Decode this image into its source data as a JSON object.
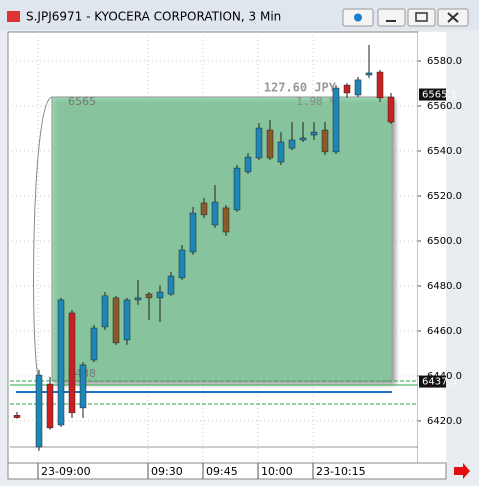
{
  "window": {
    "title": "S.JPJ6971 - KYOCERA CORPORATION, 3 Min"
  },
  "chart_data": {
    "type": "candlestick",
    "categories": [
      null,
      null,
      "23-09:00",
      null,
      null,
      null,
      null,
      null,
      null,
      null,
      null,
      null,
      "09:30",
      null,
      null,
      null,
      null,
      "09:45",
      null,
      null,
      null,
      null,
      "10:00",
      null,
      null,
      null,
      null,
      "23-10:15",
      null,
      null,
      null,
      null,
      null,
      null,
      null
    ],
    "open": [
      6422.5,
      null,
      6408.4,
      6436.4,
      6418.2,
      6468.0,
      6425.8,
      6447.1,
      6461.8,
      6474.7,
      6456.0,
      6473.8,
      6476.4,
      6474.7,
      6476.4,
      6483.6,
      6495.1,
      6516.9,
      6507.1,
      6514.7,
      6513.8,
      6530.7,
      6536.9,
      6549.3,
      6535.1,
      6541.3,
      6544.9,
      6547.1,
      6549.3,
      6539.6,
      6569.3,
      6564.9,
      6573.8,
      6575.1,
      6564.0
    ],
    "high": [
      6424.0,
      null,
      6442.7,
      6439.6,
      6474.7,
      6469.3,
      6446.2,
      6462.7,
      6477.3,
      6475.6,
      6474.7,
      6482.7,
      6477.3,
      6480.4,
      6486.2,
      6498.2,
      6515.1,
      6519.1,
      6524.9,
      6516.0,
      6533.8,
      6539.1,
      6552.4,
      6553.8,
      6548.4,
      6552.9,
      6552.9,
      6552.9,
      6552.9,
      6569.3,
      6570.2,
      6572.9,
      6587.1,
      6576.0,
      6565.8
    ],
    "low": [
      6421.0,
      null,
      6406.7,
      6416.0,
      6417.3,
      6421.3,
      6421.3,
      6446.2,
      6460.4,
      6453.8,
      6453.8,
      6471.6,
      6464.9,
      6464.0,
      6475.6,
      6482.7,
      6493.8,
      6510.2,
      6505.8,
      6502.2,
      6512.9,
      6529.8,
      6536.0,
      6536.0,
      6533.8,
      6540.4,
      6544.0,
      6544.9,
      6538.2,
      6538.7,
      6563.6,
      6564.0,
      6572.4,
      6561.8,
      6552.0
    ],
    "close": [
      6421.5,
      null,
      6440.4,
      6416.9,
      6473.8,
      6423.6,
      6444.9,
      6461.3,
      6475.6,
      6454.7,
      6473.8,
      6474.7,
      6474.7,
      6477.3,
      6484.4,
      6496.0,
      6512.4,
      6511.6,
      6517.3,
      6504.0,
      6532.4,
      6537.3,
      6550.2,
      6536.9,
      6544.0,
      6544.9,
      6545.8,
      6548.4,
      6539.6,
      6568.0,
      6565.8,
      6571.6,
      6574.7,
      6563.6,
      6552.9
    ],
    "colors": [
      "#cc1f1f",
      null,
      "#1f86b8",
      "#cc1f1f",
      "#1f86b8",
      "#cc1f1f",
      "#1f86b8",
      "#1f86b8",
      "#1f86b8",
      "#8b5a2b",
      "#1f86b8",
      "#1f86b8",
      "#8b5a2b",
      "#1f86b8",
      "#1f86b8",
      "#1f86b8",
      "#1f86b8",
      "#8b5a2b",
      "#1f86b8",
      "#8b5a2b",
      "#1f86b8",
      "#1f86b8",
      "#1f86b8",
      "#8b5a2b",
      "#1f86b8",
      "#1f86b8",
      "#1f86b8",
      "#1f86b8",
      "#8b5a2b",
      "#1f86b8",
      "#cc1f1f",
      "#1f86b8",
      "#1f86b8",
      "#cc1f1f",
      "#cc1f1f"
    ],
    "ylim": [
      6401.3,
      6592.9
    ],
    "yticks": [
      {
        "value": 6420,
        "label": "6420.0"
      },
      {
        "value": 6440,
        "label": "6440.0"
      },
      {
        "value": 6460,
        "label": "6460.0"
      },
      {
        "value": 6480,
        "label": "6480.0"
      },
      {
        "value": 6500,
        "label": "6500.0"
      },
      {
        "value": 6520,
        "label": "6520.0"
      },
      {
        "value": 6540,
        "label": "6540.0"
      },
      {
        "value": 6560,
        "label": "6560.0"
      },
      {
        "value": 6580,
        "label": "6580.0"
      }
    ],
    "price_tags": [
      {
        "value": 6565.1,
        "label": "6565.1"
      },
      {
        "value": 6437.5,
        "label": "6437.5"
      }
    ],
    "grid": true,
    "measure": {
      "change": "127.60 JPY",
      "percent": "1.98 %",
      "start_label": "6438",
      "end_label": "6565"
    }
  }
}
